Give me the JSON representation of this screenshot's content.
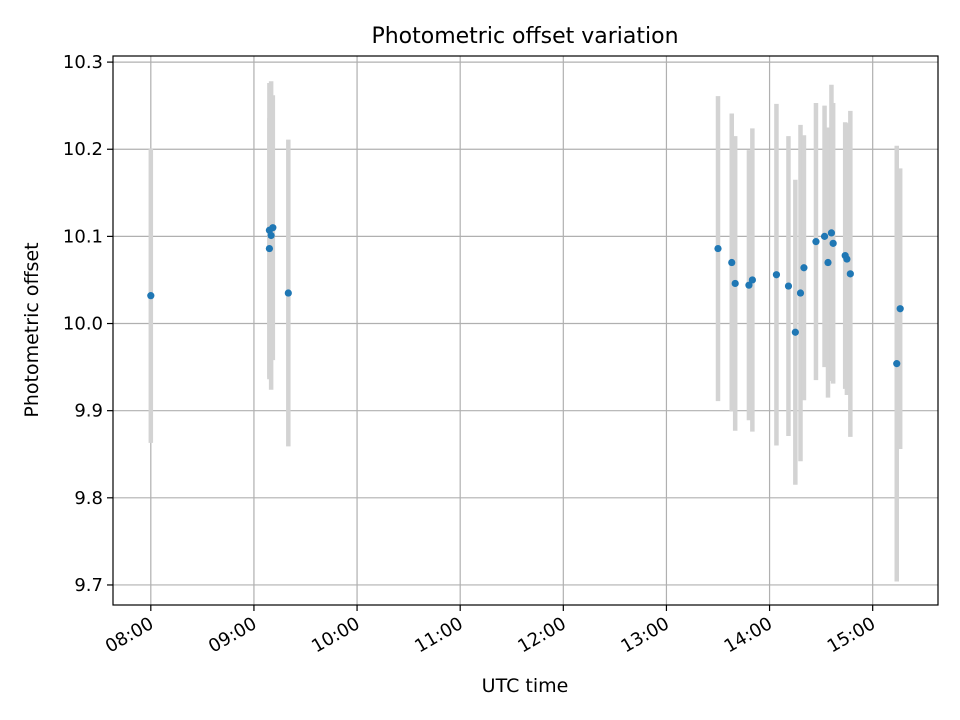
{
  "chart_data": {
    "type": "scatter",
    "title": "Photometric offset variation",
    "xlabel": "UTC time",
    "ylabel": "Photometric offset",
    "xlim": [
      "07:38",
      "15:38"
    ],
    "ylim": [
      9.677,
      10.307
    ],
    "grid": true,
    "legend": "none",
    "x_ticks": [
      "08:00",
      "09:00",
      "10:00",
      "11:00",
      "12:00",
      "13:00",
      "14:00",
      "15:00"
    ],
    "y_ticks": [
      9.7,
      9.8,
      9.9,
      10.0,
      10.1,
      10.2,
      10.3
    ],
    "y_tick_labels": [
      "9.7",
      "9.8",
      "9.9",
      "10.0",
      "10.1",
      "10.2",
      "10.3"
    ],
    "colors": {
      "points": "#1f77b4",
      "errorbars": "#d3d3d3",
      "grid": "#b0b0b0"
    },
    "points": [
      {
        "time": "08:00",
        "y": 10.032,
        "err": 0.169
      },
      {
        "time": "09:09",
        "y": 10.107,
        "err": 0.169
      },
      {
        "time": "09:09",
        "y": 10.086,
        "err": 0.15
      },
      {
        "time": "09:10",
        "y": 10.101,
        "err": 0.177
      },
      {
        "time": "09:11",
        "y": 10.11,
        "err": 0.152
      },
      {
        "time": "09:20",
        "y": 10.035,
        "err": 0.176
      },
      {
        "time": "13:30",
        "y": 10.086,
        "err": 0.175
      },
      {
        "time": "13:38",
        "y": 10.07,
        "err": 0.171
      },
      {
        "time": "13:40",
        "y": 10.046,
        "err": 0.169
      },
      {
        "time": "13:48",
        "y": 10.044,
        "err": 0.155
      },
      {
        "time": "13:50",
        "y": 10.05,
        "err": 0.174
      },
      {
        "time": "14:04",
        "y": 10.056,
        "err": 0.196
      },
      {
        "time": "14:11",
        "y": 10.043,
        "err": 0.172
      },
      {
        "time": "14:15",
        "y": 9.99,
        "err": 0.175
      },
      {
        "time": "14:18",
        "y": 10.035,
        "err": 0.193
      },
      {
        "time": "14:20",
        "y": 10.064,
        "err": 0.152
      },
      {
        "time": "14:27",
        "y": 10.094,
        "err": 0.159
      },
      {
        "time": "14:32",
        "y": 10.1,
        "err": 0.15
      },
      {
        "time": "14:34",
        "y": 10.07,
        "err": 0.155
      },
      {
        "time": "14:36",
        "y": 10.104,
        "err": 0.17
      },
      {
        "time": "14:37",
        "y": 10.092,
        "err": 0.161
      },
      {
        "time": "14:44",
        "y": 10.078,
        "err": 0.153
      },
      {
        "time": "14:45",
        "y": 10.074,
        "err": 0.156
      },
      {
        "time": "14:47",
        "y": 10.057,
        "err": 0.187
      },
      {
        "time": "15:14",
        "y": 9.954,
        "err": 0.25
      },
      {
        "time": "15:16",
        "y": 10.017,
        "err": 0.161
      }
    ]
  }
}
